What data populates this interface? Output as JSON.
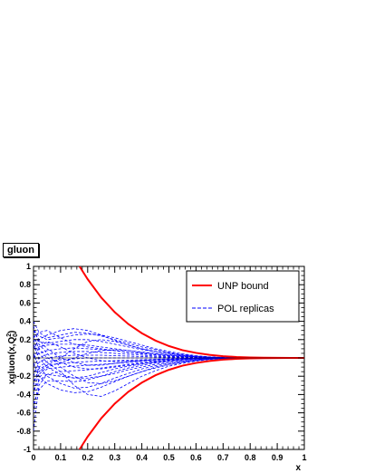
{
  "colors": {
    "bound": "#ff0000",
    "replicas": "#0000ff",
    "axes": "#000000",
    "background": "#ffffff"
  },
  "chart_data": {
    "type": "line",
    "title": "gluon",
    "xlabel": "x",
    "ylabel": "xgluon(x,Q",
    "ylabel_sup": "2",
    "ylabel_sub": "0",
    "ylabel_end": ")",
    "xlim": [
      0,
      1
    ],
    "ylim": [
      -1,
      1
    ],
    "xticks": [
      0,
      0.1,
      0.2,
      0.3,
      0.4,
      0.5,
      0.6,
      0.7,
      0.8,
      0.9,
      1
    ],
    "xtick_labels": [
      "0",
      "0.1",
      "0.2",
      "0.3",
      "0.4",
      "0.5",
      "0.6",
      "0.7",
      "0.8",
      "0.9",
      "1"
    ],
    "yticks": [
      -1,
      -0.8,
      -0.6,
      -0.4,
      -0.2,
      0,
      0.2,
      0.4,
      0.6,
      0.8,
      1
    ],
    "ytick_labels": [
      "-1",
      "-0.8",
      "-0.6",
      "-0.4",
      "-0.2",
      "0",
      "0.2",
      "0.4",
      "0.6",
      "0.8",
      "1"
    ],
    "grid": false,
    "legend": {
      "position": "top-right",
      "entries": [
        {
          "label": "UNP bound",
          "style": "solid"
        },
        {
          "label": "POL replicas",
          "style": "dashed"
        }
      ]
    },
    "bound": {
      "name": "UNP bound",
      "x": [
        0.17,
        0.2,
        0.25,
        0.3,
        0.35,
        0.4,
        0.45,
        0.5,
        0.55,
        0.6,
        0.65,
        0.7,
        0.75,
        0.8,
        0.85,
        0.9,
        0.95,
        1.0
      ],
      "upper": [
        1.0,
        0.86,
        0.66,
        0.5,
        0.37,
        0.27,
        0.19,
        0.13,
        0.085,
        0.055,
        0.033,
        0.019,
        0.01,
        0.005,
        0.002,
        0.001,
        0.0,
        0.0
      ],
      "lower": [
        -1.0,
        -0.86,
        -0.66,
        -0.5,
        -0.37,
        -0.27,
        -0.19,
        -0.13,
        -0.085,
        -0.055,
        -0.033,
        -0.019,
        -0.01,
        -0.005,
        -0.002,
        -0.001,
        0.0,
        0.0
      ]
    },
    "replicas": {
      "name": "POL replicas",
      "x": [
        0.0,
        0.02,
        0.05,
        0.1,
        0.15,
        0.2,
        0.25,
        0.3,
        0.35,
        0.4,
        0.45,
        0.5,
        0.55,
        0.6,
        0.65,
        0.7,
        0.75,
        0.8,
        0.9,
        1.0
      ],
      "curves": [
        [
          0.4,
          0.28,
          0.22,
          0.25,
          0.28,
          0.27,
          0.24,
          0.2,
          0.16,
          0.12,
          0.09,
          0.06,
          0.04,
          0.02,
          0.01,
          0.005,
          0.0,
          0.0,
          0.0,
          0.0
        ],
        [
          0.3,
          0.24,
          0.2,
          0.22,
          0.25,
          0.26,
          0.25,
          0.22,
          0.18,
          0.14,
          0.1,
          0.07,
          0.045,
          0.025,
          0.012,
          0.005,
          0.002,
          0.0,
          0.0,
          0.0
        ],
        [
          0.2,
          0.18,
          0.16,
          0.18,
          0.2,
          0.2,
          0.18,
          0.15,
          0.12,
          0.09,
          0.07,
          0.05,
          0.03,
          0.018,
          0.009,
          0.004,
          0.001,
          0.0,
          0.0,
          0.0
        ],
        [
          0.1,
          0.12,
          0.14,
          0.15,
          0.15,
          0.14,
          0.12,
          0.1,
          0.08,
          0.06,
          0.045,
          0.03,
          0.02,
          0.012,
          0.006,
          0.003,
          0.001,
          0.0,
          0.0,
          0.0
        ],
        [
          0.0,
          0.05,
          0.08,
          0.1,
          0.11,
          0.1,
          0.09,
          0.08,
          0.06,
          0.05,
          0.035,
          0.025,
          0.015,
          0.008,
          0.004,
          0.002,
          0.0,
          0.0,
          0.0,
          0.0
        ],
        [
          -0.1,
          0.0,
          0.04,
          0.06,
          0.07,
          0.07,
          0.06,
          0.05,
          0.04,
          0.03,
          0.02,
          0.015,
          0.01,
          0.005,
          0.002,
          0.001,
          0.0,
          0.0,
          0.0,
          0.0
        ],
        [
          -0.2,
          -0.05,
          0.0,
          0.02,
          0.03,
          0.03,
          0.03,
          0.025,
          0.02,
          0.015,
          0.01,
          0.008,
          0.005,
          0.002,
          0.001,
          0.0,
          0.0,
          0.0,
          0.0,
          0.0
        ],
        [
          -0.3,
          -0.1,
          -0.04,
          -0.02,
          -0.01,
          0.0,
          0.0,
          0.0,
          0.0,
          0.0,
          0.0,
          0.0,
          0.0,
          0.0,
          0.0,
          0.0,
          0.0,
          0.0,
          0.0,
          0.0
        ],
        [
          -0.4,
          -0.15,
          -0.08,
          -0.06,
          -0.05,
          -0.04,
          -0.035,
          -0.03,
          -0.025,
          -0.02,
          -0.015,
          -0.01,
          -0.006,
          -0.003,
          -0.001,
          0.0,
          0.0,
          0.0,
          0.0,
          0.0
        ],
        [
          -0.6,
          -0.22,
          -0.12,
          -0.1,
          -0.09,
          -0.08,
          -0.07,
          -0.06,
          -0.05,
          -0.04,
          -0.03,
          -0.02,
          -0.012,
          -0.006,
          -0.003,
          -0.001,
          0.0,
          0.0,
          0.0,
          0.0
        ],
        [
          -0.8,
          -0.3,
          -0.18,
          -0.15,
          -0.14,
          -0.13,
          -0.11,
          -0.09,
          -0.07,
          -0.055,
          -0.04,
          -0.028,
          -0.018,
          -0.01,
          -0.005,
          -0.002,
          0.0,
          0.0,
          0.0,
          0.0
        ],
        [
          0.25,
          0.1,
          0.0,
          -0.05,
          -0.1,
          -0.12,
          -0.12,
          -0.1,
          -0.08,
          -0.06,
          -0.045,
          -0.03,
          -0.02,
          -0.012,
          -0.006,
          -0.003,
          -0.001,
          0.0,
          0.0,
          0.0
        ],
        [
          0.15,
          0.0,
          -0.1,
          -0.18,
          -0.22,
          -0.22,
          -0.2,
          -0.17,
          -0.13,
          -0.1,
          -0.07,
          -0.05,
          -0.032,
          -0.02,
          -0.01,
          -0.004,
          -0.001,
          0.0,
          0.0,
          0.0
        ],
        [
          0.35,
          0.15,
          0.05,
          -0.1,
          -0.2,
          -0.27,
          -0.28,
          -0.25,
          -0.2,
          -0.15,
          -0.11,
          -0.075,
          -0.05,
          -0.03,
          -0.015,
          -0.007,
          -0.002,
          0.0,
          0.0,
          0.0
        ],
        [
          0.05,
          -0.1,
          -0.2,
          -0.28,
          -0.33,
          -0.32,
          -0.28,
          -0.22,
          -0.17,
          -0.12,
          -0.085,
          -0.058,
          -0.038,
          -0.022,
          -0.011,
          -0.005,
          -0.002,
          0.0,
          0.0,
          0.0
        ],
        [
          -0.05,
          -0.2,
          -0.28,
          -0.35,
          -0.38,
          -0.37,
          -0.32,
          -0.26,
          -0.2,
          -0.15,
          -0.1,
          -0.07,
          -0.045,
          -0.026,
          -0.013,
          -0.006,
          -0.002,
          0.0,
          0.0,
          0.0
        ],
        [
          0.2,
          0.05,
          -0.05,
          -0.15,
          -0.3,
          -0.4,
          -0.42,
          -0.36,
          -0.28,
          -0.2,
          -0.14,
          -0.09,
          -0.06,
          -0.035,
          -0.018,
          -0.008,
          -0.003,
          0.0,
          0.0,
          0.0
        ],
        [
          -0.15,
          -0.12,
          -0.08,
          0.0,
          0.1,
          0.18,
          0.2,
          0.18,
          0.14,
          0.1,
          0.07,
          0.05,
          0.03,
          0.015,
          0.007,
          0.003,
          0.001,
          0.0,
          0.0,
          0.0
        ],
        [
          0.1,
          0.2,
          0.25,
          0.3,
          0.32,
          0.3,
          0.25,
          0.19,
          0.14,
          0.1,
          0.07,
          0.048,
          0.03,
          0.017,
          0.008,
          0.003,
          0.001,
          0.0,
          0.0,
          0.0
        ],
        [
          -0.25,
          -0.18,
          -0.1,
          -0.05,
          0.0,
          0.05,
          0.08,
          0.09,
          0.08,
          0.065,
          0.05,
          0.035,
          0.022,
          0.012,
          0.006,
          0.002,
          0.0,
          0.0,
          0.0,
          0.0
        ],
        [
          0.3,
          0.2,
          0.1,
          0.0,
          -0.05,
          -0.08,
          -0.08,
          -0.06,
          -0.04,
          -0.03,
          -0.02,
          -0.014,
          -0.008,
          -0.004,
          -0.002,
          0.0,
          0.0,
          0.0,
          0.0,
          0.0
        ],
        [
          -0.35,
          -0.25,
          -0.18,
          -0.2,
          -0.22,
          -0.2,
          -0.16,
          -0.12,
          -0.09,
          -0.065,
          -0.045,
          -0.03,
          -0.018,
          -0.01,
          -0.005,
          -0.002,
          0.0,
          0.0,
          0.0,
          0.0
        ],
        [
          0.0,
          0.1,
          0.18,
          0.12,
          0.05,
          0.0,
          -0.03,
          -0.04,
          -0.035,
          -0.028,
          -0.02,
          -0.013,
          -0.008,
          -0.004,
          -0.002,
          0.0,
          0.0,
          0.0,
          0.0,
          0.0
        ],
        [
          -0.5,
          -0.35,
          -0.25,
          -0.25,
          -0.26,
          -0.24,
          -0.2,
          -0.15,
          -0.11,
          -0.08,
          -0.055,
          -0.037,
          -0.023,
          -0.013,
          -0.006,
          -0.002,
          0.0,
          0.0,
          0.0,
          0.0
        ],
        [
          0.22,
          0.28,
          0.3,
          0.22,
          0.15,
          0.12,
          0.1,
          0.08,
          0.06,
          0.045,
          0.032,
          0.022,
          0.014,
          0.008,
          0.004,
          0.001,
          0.0,
          0.0,
          0.0,
          0.0
        ]
      ]
    }
  }
}
